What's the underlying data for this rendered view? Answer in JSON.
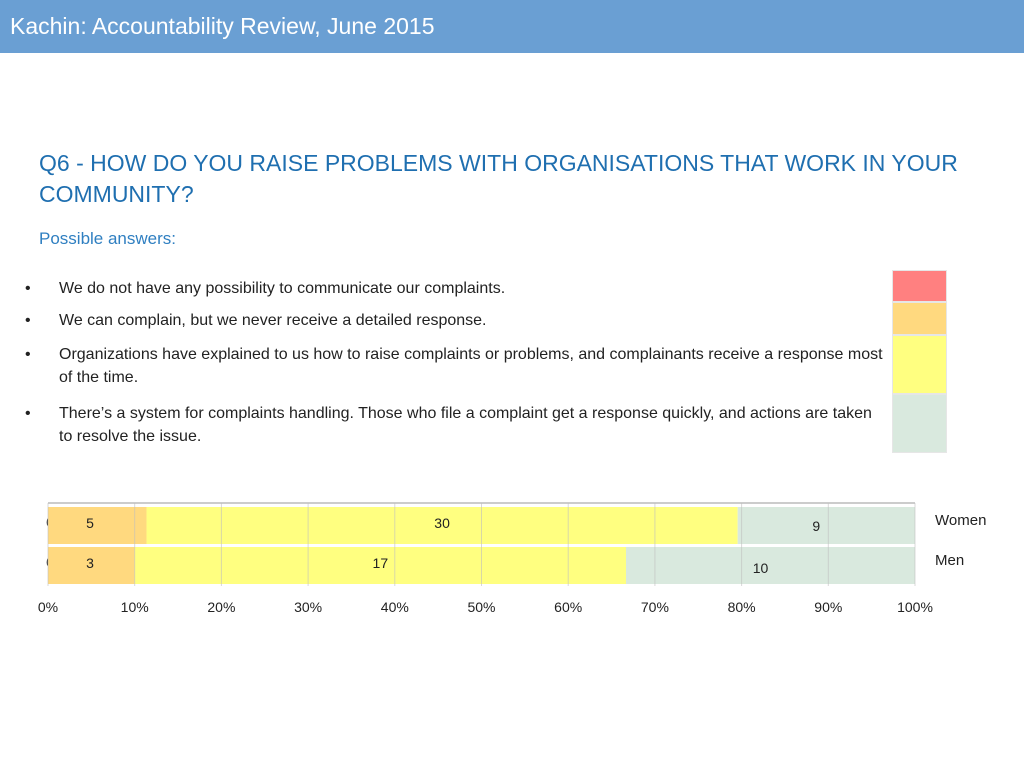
{
  "header": {
    "title": "Kachin: Accountability Review, June 2015"
  },
  "question": {
    "title": "Q6 - HOW DO YOU RAISE PROBLEMS WITH ORGANISATIONS THAT WORK IN YOUR COMMUNITY?",
    "subtitle": "Possible answers:"
  },
  "answers": [
    {
      "bullet": "•",
      "text": "We do not have any possibility to communicate our complaints.",
      "color": "#ff8080"
    },
    {
      "bullet": "•",
      "text": "We can complain, but we never receive a detailed response.",
      "color": "#ffd97f"
    },
    {
      "bullet": "•",
      "text": "Organizations have explained to us how to raise complaints or problems, and complainants receive a response most of the time.",
      "color": "#ffff80"
    },
    {
      "bullet": "•",
      "text": "There’s a system for complaints handling. Those who file a complaint get a response quickly, and actions are taken to resolve the issue.",
      "color": "#d9e9de"
    }
  ],
  "chart_data": {
    "type": "bar",
    "orientation": "horizontal",
    "stacked": true,
    "normalized": true,
    "categories": [
      "Women",
      "Men"
    ],
    "series": [
      {
        "color": "#ff8080",
        "values": [
          0,
          0
        ]
      },
      {
        "color": "#ffd97f",
        "values": [
          5,
          3
        ]
      },
      {
        "color": "#ffff80",
        "values": [
          30,
          17
        ]
      },
      {
        "color": "#d9e9de",
        "values": [
          9,
          10
        ]
      }
    ],
    "xticks": [
      "0%",
      "10%",
      "20%",
      "30%",
      "40%",
      "50%",
      "60%",
      "70%",
      "80%",
      "90%",
      "100%"
    ],
    "xlim": [
      0,
      100
    ],
    "grid": true,
    "legend": "none"
  }
}
